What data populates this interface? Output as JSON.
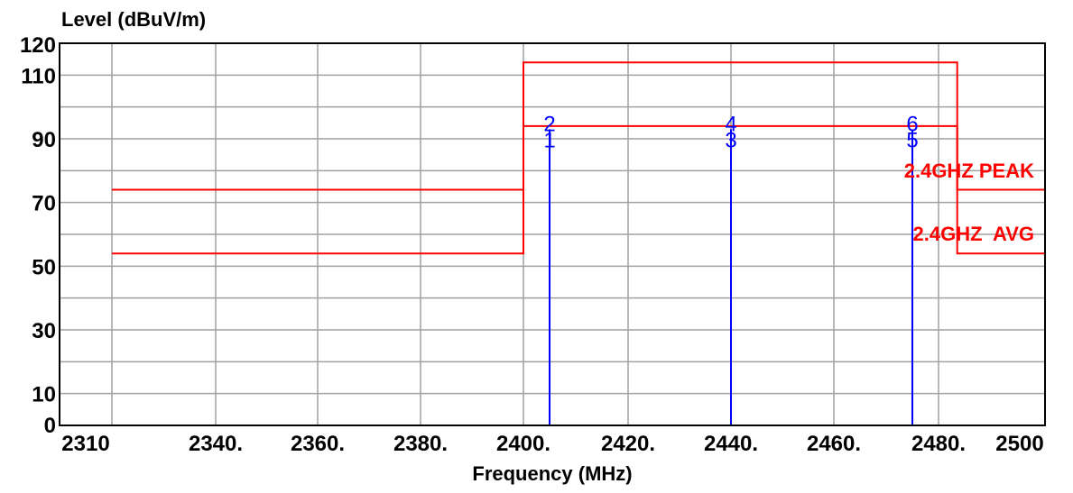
{
  "chart_data": {
    "type": "line",
    "ylabel": "Level (dBuV/m)",
    "xlabel": "Frequency (MHz)",
    "x_scale": "piecewise-linear (uneven tick spacing)",
    "xlim": [
      2310,
      2500
    ],
    "ylim": [
      0,
      120
    ],
    "x_ticks": [
      2310,
      2340,
      2360,
      2380,
      2400,
      2420,
      2440,
      2460,
      2480,
      2500
    ],
    "x_tick_labels": [
      "2310",
      "2340.",
      "2360.",
      "2380.",
      "2400.",
      "2420.",
      "2440.",
      "2460.",
      "2480.",
      "2500"
    ],
    "y_ticks": [
      0,
      10,
      30,
      50,
      70,
      90,
      110,
      120
    ],
    "y_tick_labels": [
      "0",
      "10",
      "30",
      "50",
      "70",
      "90",
      "110",
      "120"
    ],
    "grid": true,
    "limit_lines": [
      {
        "color": "#ff0000",
        "points": [
          [
            2310,
            74
          ],
          [
            2400,
            74
          ],
          [
            2400,
            114
          ],
          [
            2483.5,
            114
          ],
          [
            2483.5,
            74
          ],
          [
            2500,
            74
          ]
        ]
      },
      {
        "color": "#ff0000",
        "points": [
          [
            2310,
            54
          ],
          [
            2400,
            54
          ],
          [
            2400,
            94
          ],
          [
            2483.5,
            94
          ],
          [
            2483.5,
            54
          ],
          [
            2500,
            54
          ]
        ]
      }
    ],
    "limit_labels": [
      {
        "text": "2.4GHZ PEAK",
        "color": "#ff0000"
      },
      {
        "text": "2.4GHZ  AVG",
        "color": "#ff0000"
      }
    ],
    "markers": [
      {
        "label": "1",
        "x": 2405,
        "y": 91
      },
      {
        "label": "2",
        "x": 2405,
        "y": 95
      },
      {
        "label": "3",
        "x": 2440,
        "y": 91
      },
      {
        "label": "4",
        "x": 2440,
        "y": 95
      },
      {
        "label": "5",
        "x": 2475,
        "y": 91
      },
      {
        "label": "6",
        "x": 2475,
        "y": 95
      }
    ],
    "marker_color": "#0000ff",
    "grid_color": "#a0a0a0"
  }
}
